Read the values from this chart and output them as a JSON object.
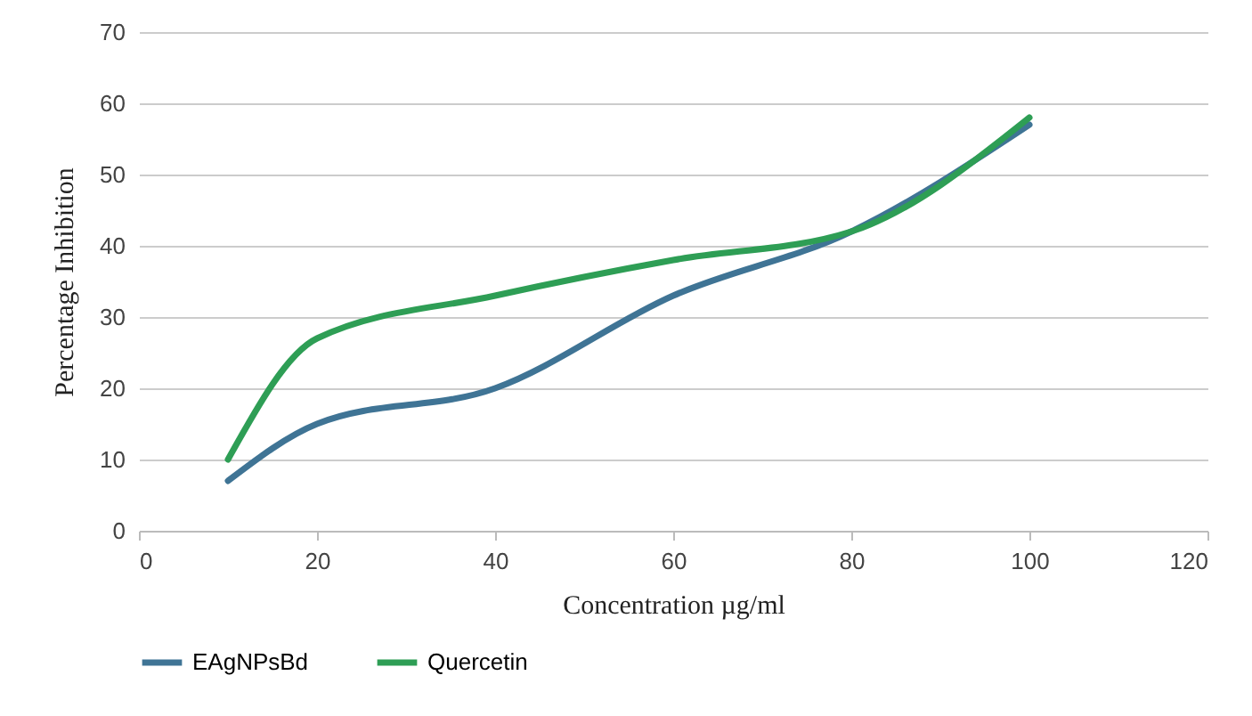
{
  "chart_data": {
    "type": "line",
    "xlabel": "Concentration µg/ml",
    "ylabel": "Percentage Inhibition",
    "x": [
      10,
      20,
      40,
      60,
      80,
      100
    ],
    "series": [
      {
        "name": "EAgNPsBd",
        "color": "#3f7495",
        "values": [
          7,
          15,
          20,
          33,
          42,
          57
        ]
      },
      {
        "name": "Quercetin",
        "color": "#2e9e55",
        "values": [
          10,
          27,
          33,
          38,
          42,
          58
        ]
      }
    ],
    "xlim": [
      0,
      120
    ],
    "xticks": [
      0,
      20,
      40,
      60,
      80,
      100,
      120
    ],
    "ylim": [
      0,
      70
    ],
    "yticks": [
      0,
      10,
      20,
      30,
      40,
      50,
      60,
      70
    ],
    "grid": "y",
    "legend": "bottom",
    "marker": "none",
    "line_style": "solid"
  }
}
